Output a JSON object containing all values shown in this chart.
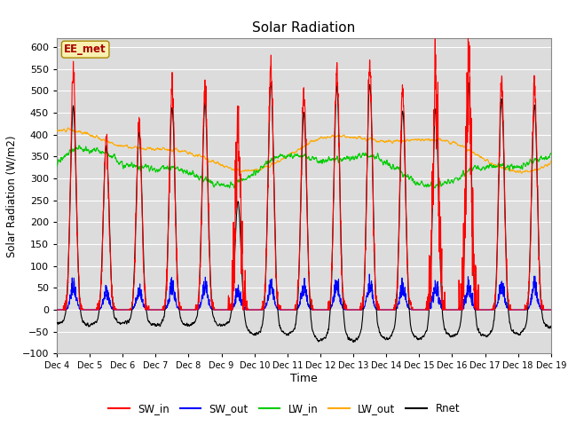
{
  "title": "Solar Radiation",
  "ylabel": "Solar Radiation (W/m2)",
  "xlabel": "Time",
  "ylim": [
    -100,
    620
  ],
  "yticks": [
    -100,
    -50,
    0,
    50,
    100,
    150,
    200,
    250,
    300,
    350,
    400,
    450,
    500,
    550,
    600
  ],
  "n_days": 15,
  "start_day": 4,
  "colors": {
    "SW_in": "#ff0000",
    "SW_out": "#0000ff",
    "LW_in": "#00cc00",
    "LW_out": "#ffaa00",
    "Rnet": "#000000"
  },
  "annotation": "EE_met",
  "background_color": "#dcdcdc",
  "figure_background": "#ffffff",
  "linewidth": 0.8,
  "legend_labels": [
    "SW_in",
    "SW_out",
    "LW_in",
    "LW_out",
    "Rnet"
  ]
}
